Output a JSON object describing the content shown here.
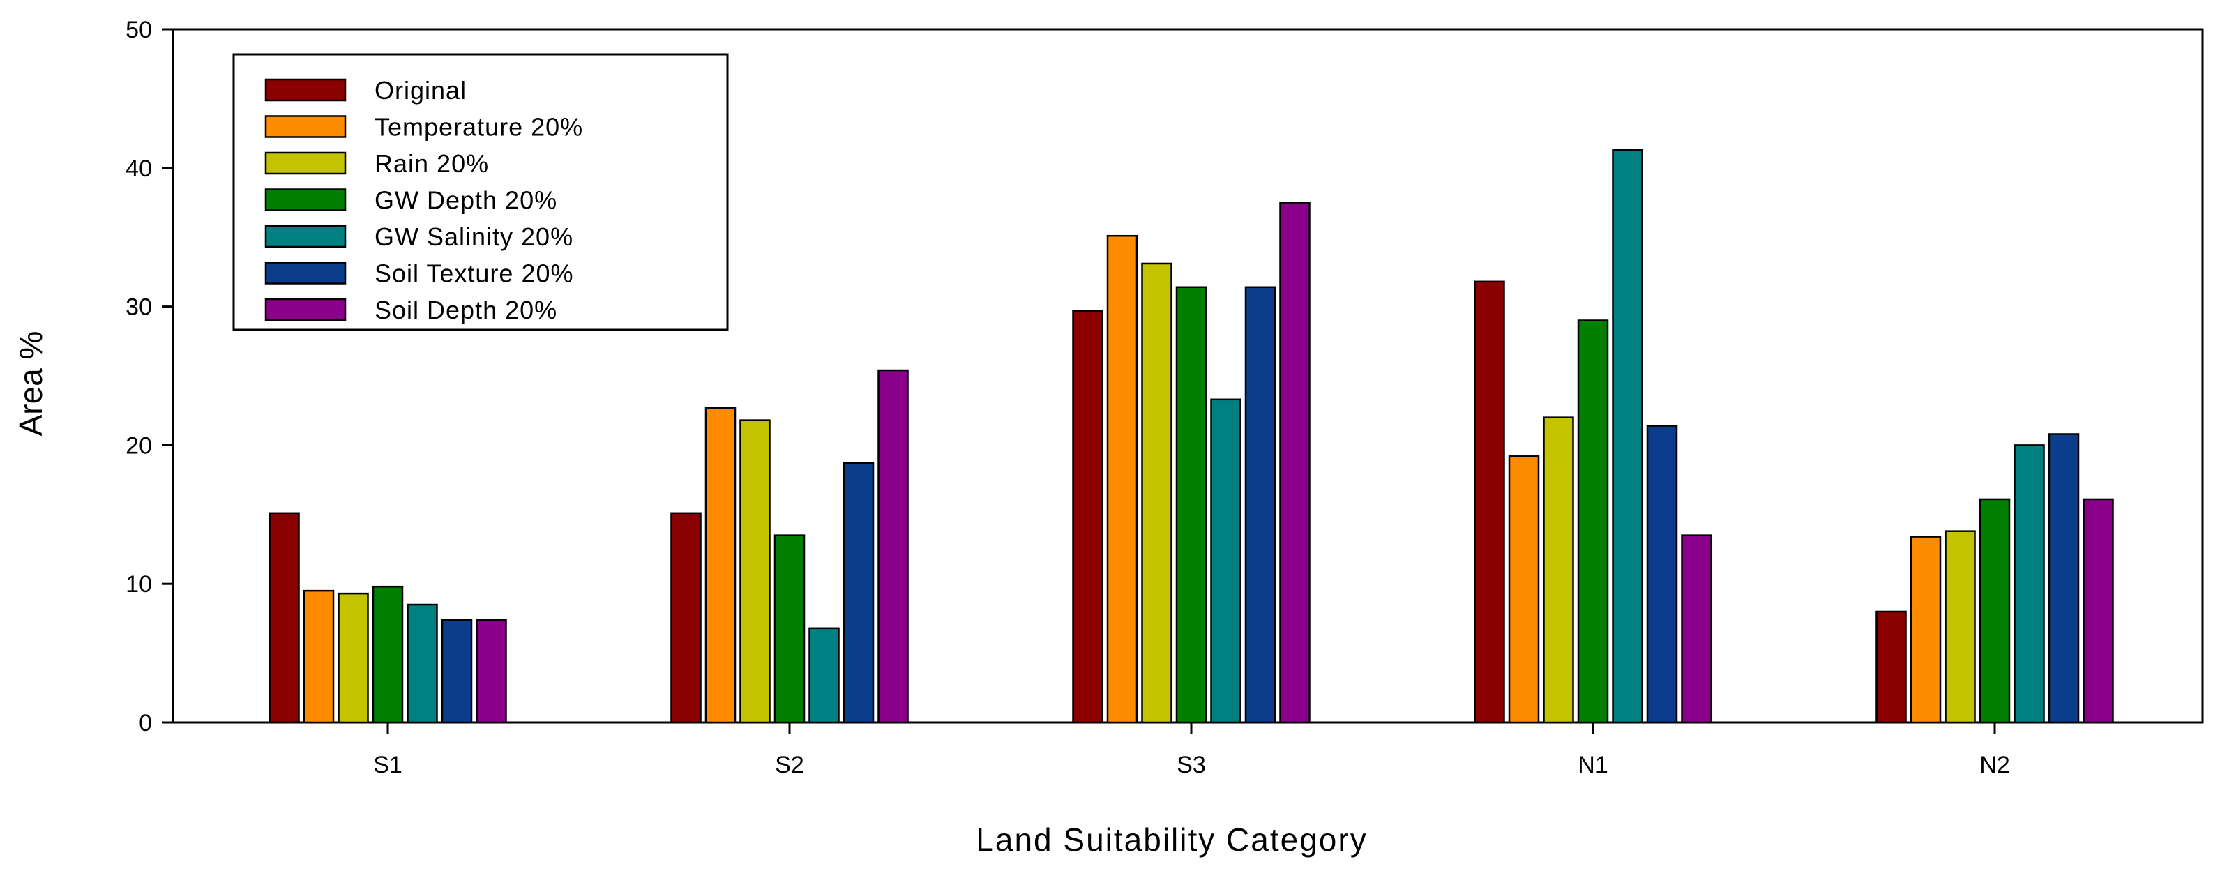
{
  "chart_data": {
    "type": "bar",
    "title": "",
    "xlabel": "Land Suitability Category",
    "ylabel": "Area %",
    "ylim": [
      0,
      50
    ],
    "yticks": [
      "0",
      "10",
      "20",
      "30",
      "40",
      "50"
    ],
    "grid": false,
    "legend_position": "top-left",
    "categories": [
      "S1",
      "S2",
      "S3",
      "N1",
      "N2"
    ],
    "series": [
      {
        "name": "Original",
        "color": "#8b0000",
        "values": [
          15.1,
          15.1,
          29.7,
          31.8,
          8.0
        ]
      },
      {
        "name": "Temperature 20%",
        "color": "#ff8c00",
        "values": [
          9.5,
          22.7,
          35.1,
          19.2,
          13.4
        ]
      },
      {
        "name": "Rain 20%",
        "color": "#c3c300",
        "values": [
          9.3,
          21.8,
          33.1,
          22.0,
          13.8
        ]
      },
      {
        "name": "GW Depth 20%",
        "color": "#007f00",
        "values": [
          9.8,
          13.5,
          31.4,
          29.0,
          16.1
        ]
      },
      {
        "name": "GW Salinity 20%",
        "color": "#008080",
        "values": [
          8.5,
          6.8,
          23.3,
          41.3,
          20.0
        ]
      },
      {
        "name": "Soil Texture 20%",
        "color": "#0b3d8c",
        "values": [
          7.4,
          18.7,
          31.4,
          21.4,
          20.8
        ]
      },
      {
        "name": "Soil Depth 20%",
        "color": "#8b008b",
        "values": [
          7.4,
          25.4,
          37.5,
          13.5,
          16.1
        ]
      }
    ]
  }
}
